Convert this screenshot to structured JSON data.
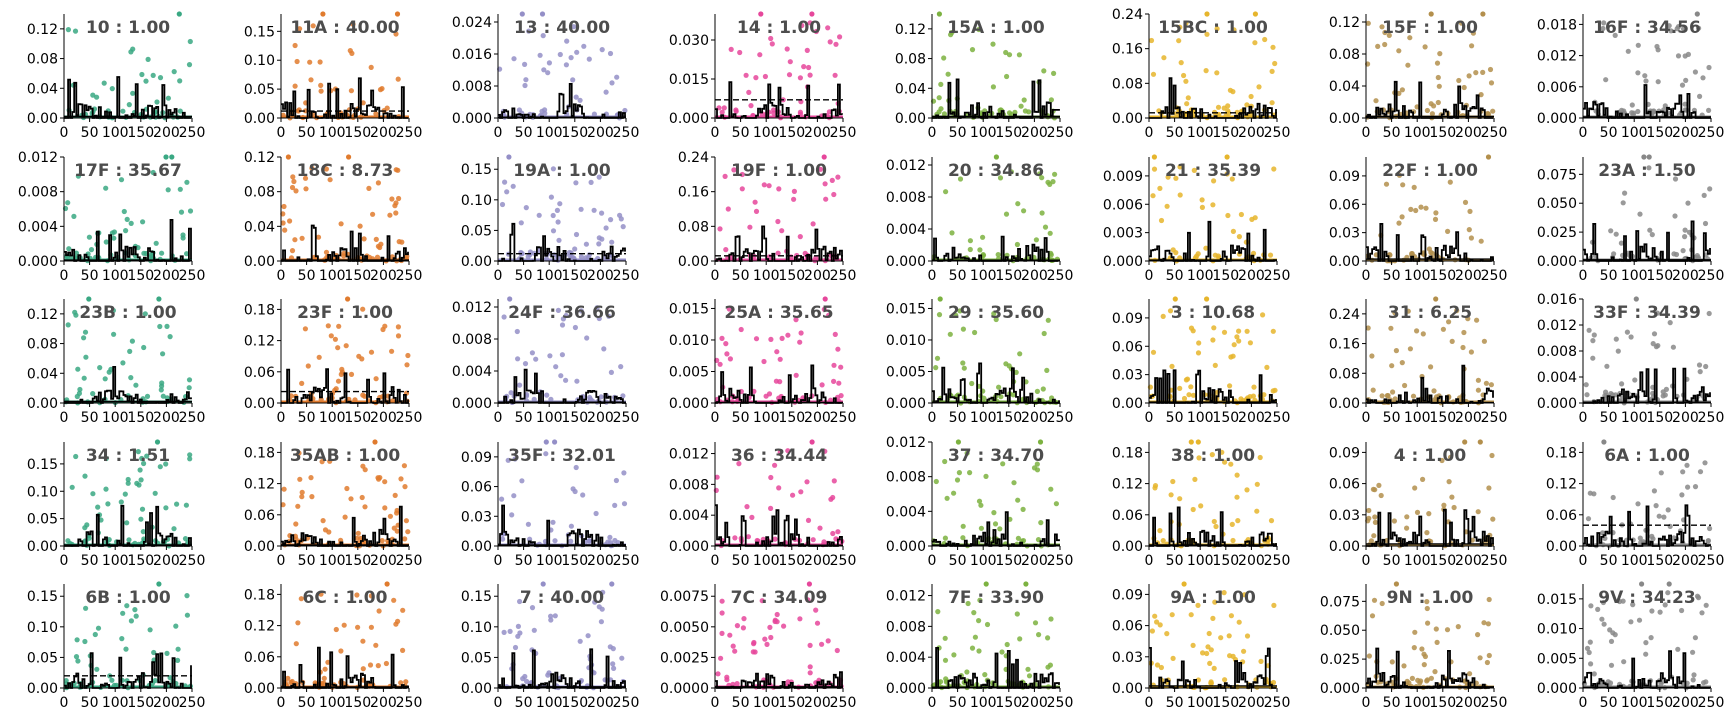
{
  "colors": [
    "#3aa883",
    "#e07b2e",
    "#948fc7",
    "#e6479b",
    "#7cb240",
    "#e6b52c",
    "#b38f4c",
    "#888888"
  ],
  "chart_data": [
    {
      "type": "scatter",
      "title": "10 : 1.00",
      "x_ticks": [
        0,
        50,
        100,
        150,
        200,
        250
      ],
      "xlim": [
        0,
        250
      ],
      "ylim": [
        0,
        0.14
      ],
      "y_ticks": [
        "0.00",
        "0.04",
        "0.08",
        "0.12"
      ],
      "y_tick_values": [
        0,
        0.04,
        0.08,
        0.12
      ],
      "threshold": 0.002,
      "dashed": false
    },
    {
      "type": "scatter",
      "title": "11A : 40.00",
      "x_ticks": [
        0,
        50,
        100,
        150,
        200,
        250
      ],
      "xlim": [
        0,
        250
      ],
      "ylim": [
        0,
        0.18
      ],
      "y_ticks": [
        "0.00",
        "0.05",
        "0.10",
        "0.15"
      ],
      "y_tick_values": [
        0,
        0.05,
        0.1,
        0.15
      ],
      "threshold": 0.012,
      "dashed": true
    },
    {
      "type": "scatter",
      "title": "13 : 40.00",
      "x_ticks": [
        0,
        50,
        100,
        150,
        200,
        250
      ],
      "xlim": [
        0,
        250
      ],
      "ylim": [
        0,
        0.026
      ],
      "y_ticks": [
        "0.000",
        "0.008",
        "0.016",
        "0.024"
      ],
      "y_tick_values": [
        0,
        0.008,
        0.016,
        0.024
      ],
      "threshold": 0.0002,
      "dashed": false
    },
    {
      "type": "scatter",
      "title": "14 : 1.00",
      "x_ticks": [
        0,
        50,
        100,
        150,
        200,
        250
      ],
      "xlim": [
        0,
        250
      ],
      "ylim": [
        0,
        0.04
      ],
      "y_ticks": [
        "0.000",
        "0.015",
        "0.030"
      ],
      "y_tick_values": [
        0,
        0.015,
        0.03
      ],
      "threshold": 0.007,
      "dashed": true
    },
    {
      "type": "scatter",
      "title": "15A : 1.00",
      "x_ticks": [
        0,
        50,
        100,
        150,
        200,
        250
      ],
      "xlim": [
        0,
        250
      ],
      "ylim": [
        0,
        0.14
      ],
      "y_ticks": [
        "0.00",
        "0.04",
        "0.08",
        "0.12"
      ],
      "y_tick_values": [
        0,
        0.04,
        0.08,
        0.12
      ],
      "threshold": 0.002,
      "dashed": false
    },
    {
      "type": "scatter",
      "title": "15BC : 1.00",
      "x_ticks": [
        0,
        50,
        100,
        150,
        200,
        250
      ],
      "xlim": [
        0,
        250
      ],
      "ylim": [
        0,
        0.24
      ],
      "y_ticks": [
        "0.00",
        "0.08",
        "0.16",
        "0.24"
      ],
      "y_tick_values": [
        0,
        0.08,
        0.16,
        0.24
      ],
      "threshold": 0.012,
      "dashed": true
    },
    {
      "type": "scatter",
      "title": "15F : 1.00",
      "x_ticks": [
        0,
        50,
        100,
        150,
        200,
        250
      ],
      "xlim": [
        0,
        250
      ],
      "ylim": [
        0,
        0.13
      ],
      "y_ticks": [
        "0.00",
        "0.04",
        "0.08",
        "0.12"
      ],
      "y_tick_values": [
        0,
        0.04,
        0.08,
        0.12
      ],
      "threshold": 0.002,
      "dashed": false
    },
    {
      "type": "scatter",
      "title": "16F : 34.56",
      "x_ticks": [
        0,
        50,
        100,
        150,
        200,
        250
      ],
      "xlim": [
        0,
        250
      ],
      "ylim": [
        0,
        0.02
      ],
      "y_ticks": [
        "0.000",
        "0.006",
        "0.012",
        "0.018"
      ],
      "y_tick_values": [
        0,
        0.006,
        0.012,
        0.018
      ],
      "threshold": 0.0002,
      "dashed": false
    },
    {
      "type": "scatter",
      "title": "17F : 35.67",
      "x_ticks": [
        0,
        50,
        100,
        150,
        200,
        250
      ],
      "xlim": [
        0,
        250
      ],
      "ylim": [
        0,
        0.012
      ],
      "y_ticks": [
        "0.000",
        "0.004",
        "0.008",
        "0.012"
      ],
      "y_tick_values": [
        0,
        0.004,
        0.008,
        0.012
      ],
      "threshold": 0.0001,
      "dashed": false
    },
    {
      "type": "scatter",
      "title": "18C : 8.73",
      "x_ticks": [
        0,
        50,
        100,
        150,
        200,
        250
      ],
      "xlim": [
        0,
        250
      ],
      "ylim": [
        0,
        0.12
      ],
      "y_ticks": [
        "0.00",
        "0.04",
        "0.08",
        "0.12"
      ],
      "y_tick_values": [
        0,
        0.04,
        0.08,
        0.12
      ],
      "threshold": 0.001,
      "dashed": false
    },
    {
      "type": "scatter",
      "title": "19A : 1.00",
      "x_ticks": [
        0,
        50,
        100,
        150,
        200,
        250
      ],
      "xlim": [
        0,
        250
      ],
      "ylim": [
        0,
        0.17
      ],
      "y_ticks": [
        "0.00",
        "0.05",
        "0.10",
        "0.15"
      ],
      "y_tick_values": [
        0,
        0.05,
        0.1,
        0.15
      ],
      "threshold": 0.012,
      "dashed": true
    },
    {
      "type": "scatter",
      "title": "19F : 1.00",
      "x_ticks": [
        0,
        50,
        100,
        150,
        200,
        250
      ],
      "xlim": [
        0,
        250
      ],
      "ylim": [
        0,
        0.24
      ],
      "y_ticks": [
        "0.00",
        "0.08",
        "0.16",
        "0.24"
      ],
      "y_tick_values": [
        0,
        0.08,
        0.16,
        0.24
      ],
      "threshold": 0.012,
      "dashed": true
    },
    {
      "type": "scatter",
      "title": "20 : 34.86",
      "x_ticks": [
        0,
        50,
        100,
        150,
        200,
        250
      ],
      "xlim": [
        0,
        250
      ],
      "ylim": [
        0,
        0.013
      ],
      "y_ticks": [
        "0.000",
        "0.004",
        "0.008",
        "0.012"
      ],
      "y_tick_values": [
        0,
        0.004,
        0.008,
        0.012
      ],
      "threshold": 0.0001,
      "dashed": false
    },
    {
      "type": "scatter",
      "title": "21 : 35.39",
      "x_ticks": [
        0,
        50,
        100,
        150,
        200,
        250
      ],
      "xlim": [
        0,
        250
      ],
      "ylim": [
        0,
        0.011
      ],
      "y_ticks": [
        "0.000",
        "0.003",
        "0.006",
        "0.009"
      ],
      "y_tick_values": [
        0,
        0.003,
        0.006,
        0.009
      ],
      "threshold": 0.0001,
      "dashed": false
    },
    {
      "type": "scatter",
      "title": "22F : 1.00",
      "x_ticks": [
        0,
        50,
        100,
        150,
        200,
        250
      ],
      "xlim": [
        0,
        250
      ],
      "ylim": [
        0,
        0.11
      ],
      "y_ticks": [
        "0.00",
        "0.03",
        "0.06",
        "0.09"
      ],
      "y_tick_values": [
        0,
        0.03,
        0.06,
        0.09
      ],
      "threshold": 0.002,
      "dashed": false
    },
    {
      "type": "scatter",
      "title": "23A : 1.50",
      "x_ticks": [
        0,
        50,
        100,
        150,
        200,
        250
      ],
      "xlim": [
        0,
        250
      ],
      "ylim": [
        0,
        0.09
      ],
      "y_ticks": [
        "0.000",
        "0.025",
        "0.050",
        "0.075"
      ],
      "y_tick_values": [
        0,
        0.025,
        0.05,
        0.075
      ],
      "threshold": 0.001,
      "dashed": false
    },
    {
      "type": "scatter",
      "title": "23B : 1.00",
      "x_ticks": [
        0,
        50,
        100,
        150,
        200,
        250
      ],
      "xlim": [
        0,
        250
      ],
      "ylim": [
        0,
        0.14
      ],
      "y_ticks": [
        "0.00",
        "0.04",
        "0.08",
        "0.12"
      ],
      "y_tick_values": [
        0,
        0.04,
        0.08,
        0.12
      ],
      "threshold": 0.002,
      "dashed": false
    },
    {
      "type": "scatter",
      "title": "23F : 1.00",
      "x_ticks": [
        0,
        50,
        100,
        150,
        200,
        250
      ],
      "xlim": [
        0,
        250
      ],
      "ylim": [
        0,
        0.2
      ],
      "y_ticks": [
        "0.00",
        "0.06",
        "0.12",
        "0.18"
      ],
      "y_tick_values": [
        0,
        0.06,
        0.12,
        0.18
      ],
      "threshold": 0.022,
      "dashed": true
    },
    {
      "type": "scatter",
      "title": "24F : 36.66",
      "x_ticks": [
        0,
        50,
        100,
        150,
        200,
        250
      ],
      "xlim": [
        0,
        250
      ],
      "ylim": [
        0,
        0.013
      ],
      "y_ticks": [
        "0.000",
        "0.004",
        "0.008",
        "0.012"
      ],
      "y_tick_values": [
        0,
        0.004,
        0.008,
        0.012
      ],
      "threshold": 0.0001,
      "dashed": false
    },
    {
      "type": "scatter",
      "title": "25A : 35.65",
      "x_ticks": [
        0,
        50,
        100,
        150,
        200,
        250
      ],
      "xlim": [
        0,
        250
      ],
      "ylim": [
        0,
        0.0165
      ],
      "y_ticks": [
        "0.000",
        "0.005",
        "0.010",
        "0.015"
      ],
      "y_tick_values": [
        0,
        0.005,
        0.01,
        0.015
      ],
      "threshold": 0.0001,
      "dashed": false
    },
    {
      "type": "scatter",
      "title": "29 : 35.60",
      "x_ticks": [
        0,
        50,
        100,
        150,
        200,
        250
      ],
      "xlim": [
        0,
        250
      ],
      "ylim": [
        0,
        0.0165
      ],
      "y_ticks": [
        "0.000",
        "0.005",
        "0.010",
        "0.015"
      ],
      "y_tick_values": [
        0,
        0.005,
        0.01,
        0.015
      ],
      "threshold": 0.0001,
      "dashed": false
    },
    {
      "type": "scatter",
      "title": "3 : 10.68",
      "x_ticks": [
        0,
        50,
        100,
        150,
        200,
        250
      ],
      "xlim": [
        0,
        250
      ],
      "ylim": [
        0,
        0.11
      ],
      "y_ticks": [
        "0.00",
        "0.03",
        "0.06",
        "0.09"
      ],
      "y_tick_values": [
        0,
        0.03,
        0.06,
        0.09
      ],
      "threshold": 0.001,
      "dashed": false
    },
    {
      "type": "scatter",
      "title": "31 : 6.25",
      "x_ticks": [
        0,
        50,
        100,
        150,
        200,
        250
      ],
      "xlim": [
        0,
        250
      ],
      "ylim": [
        0,
        0.28
      ],
      "y_ticks": [
        "0.00",
        "0.08",
        "0.16",
        "0.24"
      ],
      "y_tick_values": [
        0,
        0.08,
        0.16,
        0.24
      ],
      "threshold": 0.001,
      "dashed": false
    },
    {
      "type": "scatter",
      "title": "33F : 34.39",
      "x_ticks": [
        0,
        50,
        100,
        150,
        200,
        250
      ],
      "xlim": [
        0,
        250
      ],
      "ylim": [
        0,
        0.016
      ],
      "y_ticks": [
        "0.000",
        "0.004",
        "0.008",
        "0.012",
        "0.016"
      ],
      "y_tick_values": [
        0,
        0.004,
        0.008,
        0.012,
        0.016
      ],
      "threshold": 0.0001,
      "dashed": false
    },
    {
      "type": "scatter",
      "title": "34 : 1.51",
      "x_ticks": [
        0,
        50,
        100,
        150,
        200,
        250
      ],
      "xlim": [
        0,
        250
      ],
      "ylim": [
        0,
        0.19
      ],
      "y_ticks": [
        "0.00",
        "0.05",
        "0.10",
        "0.15"
      ],
      "y_tick_values": [
        0,
        0.05,
        0.1,
        0.15
      ],
      "threshold": 0.002,
      "dashed": false
    },
    {
      "type": "scatter",
      "title": "35AB : 1.00",
      "x_ticks": [
        0,
        50,
        100,
        150,
        200,
        250
      ],
      "xlim": [
        0,
        250
      ],
      "ylim": [
        0,
        0.2
      ],
      "y_ticks": [
        "0.00",
        "0.06",
        "0.12",
        "0.18"
      ],
      "y_tick_values": [
        0,
        0.06,
        0.12,
        0.18
      ],
      "threshold": 0.002,
      "dashed": false
    },
    {
      "type": "scatter",
      "title": "35F : 32.01",
      "x_ticks": [
        0,
        50,
        100,
        150,
        200,
        250
      ],
      "xlim": [
        0,
        250
      ],
      "ylim": [
        0,
        0.105
      ],
      "y_ticks": [
        "0.00",
        "0.03",
        "0.06",
        "0.09"
      ],
      "y_tick_values": [
        0,
        0.03,
        0.06,
        0.09
      ],
      "threshold": 0.001,
      "dashed": false
    },
    {
      "type": "scatter",
      "title": "36 : 34.44",
      "x_ticks": [
        0,
        50,
        100,
        150,
        200,
        250
      ],
      "xlim": [
        0,
        250
      ],
      "ylim": [
        0,
        0.0135
      ],
      "y_ticks": [
        "0.000",
        "0.004",
        "0.008",
        "0.012"
      ],
      "y_tick_values": [
        0,
        0.004,
        0.008,
        0.012
      ],
      "threshold": 0.0001,
      "dashed": false
    },
    {
      "type": "scatter",
      "title": "37 : 34.70",
      "x_ticks": [
        0,
        50,
        100,
        150,
        200,
        250
      ],
      "xlim": [
        0,
        250
      ],
      "ylim": [
        0,
        0.012
      ],
      "y_ticks": [
        "0.000",
        "0.004",
        "0.008",
        "0.012"
      ],
      "y_tick_values": [
        0,
        0.004,
        0.008,
        0.012
      ],
      "threshold": 0.0001,
      "dashed": false
    },
    {
      "type": "scatter",
      "title": "38 : 1.00",
      "x_ticks": [
        0,
        50,
        100,
        150,
        200,
        250
      ],
      "xlim": [
        0,
        250
      ],
      "ylim": [
        0,
        0.2
      ],
      "y_ticks": [
        "0.00",
        "0.06",
        "0.12",
        "0.18"
      ],
      "y_tick_values": [
        0,
        0.06,
        0.12,
        0.18
      ],
      "threshold": 0.002,
      "dashed": false
    },
    {
      "type": "scatter",
      "title": "4 : 1.00",
      "x_ticks": [
        0,
        50,
        100,
        150,
        200,
        250
      ],
      "xlim": [
        0,
        250
      ],
      "ylim": [
        0,
        0.1
      ],
      "y_ticks": [
        "0.00",
        "0.03",
        "0.06",
        "0.09"
      ],
      "y_tick_values": [
        0,
        0.03,
        0.06,
        0.09
      ],
      "threshold": 0.002,
      "dashed": false
    },
    {
      "type": "scatter",
      "title": "6A : 1.00",
      "x_ticks": [
        0,
        50,
        100,
        150,
        200,
        250
      ],
      "xlim": [
        0,
        250
      ],
      "ylim": [
        0,
        0.2
      ],
      "y_ticks": [
        "0.00",
        "0.06",
        "0.12",
        "0.18"
      ],
      "y_tick_values": [
        0,
        0.06,
        0.12,
        0.18
      ],
      "threshold": 0.04,
      "dashed": true
    },
    {
      "type": "scatter",
      "title": "6B : 1.00",
      "x_ticks": [
        0,
        50,
        100,
        150,
        200,
        250
      ],
      "xlim": [
        0,
        250
      ],
      "ylim": [
        0,
        0.17
      ],
      "y_ticks": [
        "0.00",
        "0.05",
        "0.10",
        "0.15"
      ],
      "y_tick_values": [
        0,
        0.05,
        0.1,
        0.15
      ],
      "threshold": 0.02,
      "dashed": true
    },
    {
      "type": "scatter",
      "title": "6C : 1.00",
      "x_ticks": [
        0,
        50,
        100,
        150,
        200,
        250
      ],
      "xlim": [
        0,
        250
      ],
      "ylim": [
        0,
        0.2
      ],
      "y_ticks": [
        "0.00",
        "0.06",
        "0.12",
        "0.18"
      ],
      "y_tick_values": [
        0,
        0.06,
        0.12,
        0.18
      ],
      "threshold": 0.002,
      "dashed": false
    },
    {
      "type": "scatter",
      "title": "7 : 40.00",
      "x_ticks": [
        0,
        50,
        100,
        150,
        200,
        250
      ],
      "xlim": [
        0,
        250
      ],
      "ylim": [
        0,
        0.17
      ],
      "y_ticks": [
        "0.00",
        "0.05",
        "0.10",
        "0.15"
      ],
      "y_tick_values": [
        0,
        0.05,
        0.1,
        0.15
      ],
      "threshold": 0.002,
      "dashed": false
    },
    {
      "type": "scatter",
      "title": "7C : 34.09",
      "x_ticks": [
        0,
        50,
        100,
        150,
        200,
        250
      ],
      "xlim": [
        0,
        250
      ],
      "ylim": [
        0,
        0.0085
      ],
      "y_ticks": [
        "0.0000",
        "0.0025",
        "0.0050",
        "0.0075"
      ],
      "y_tick_values": [
        0,
        0.0025,
        0.005,
        0.0075
      ],
      "threshold": 0.0001,
      "dashed": false
    },
    {
      "type": "scatter",
      "title": "7F : 33.90",
      "x_ticks": [
        0,
        50,
        100,
        150,
        200,
        250
      ],
      "xlim": [
        0,
        250
      ],
      "ylim": [
        0,
        0.0135
      ],
      "y_ticks": [
        "0.000",
        "0.004",
        "0.008",
        "0.012"
      ],
      "y_tick_values": [
        0,
        0.004,
        0.008,
        0.012
      ],
      "threshold": 0.0001,
      "dashed": false
    },
    {
      "type": "scatter",
      "title": "9A : 1.00",
      "x_ticks": [
        0,
        50,
        100,
        150,
        200,
        250
      ],
      "xlim": [
        0,
        250
      ],
      "ylim": [
        0,
        0.1
      ],
      "y_ticks": [
        "0.00",
        "0.03",
        "0.06",
        "0.09"
      ],
      "y_tick_values": [
        0,
        0.03,
        0.06,
        0.09
      ],
      "threshold": 0.002,
      "dashed": false
    },
    {
      "type": "scatter",
      "title": "9N : 1.00",
      "x_ticks": [
        0,
        50,
        100,
        150,
        200,
        250
      ],
      "xlim": [
        0,
        250
      ],
      "ylim": [
        0,
        0.09
      ],
      "y_ticks": [
        "0.000",
        "0.025",
        "0.050",
        "0.075"
      ],
      "y_tick_values": [
        0,
        0.025,
        0.05,
        0.075
      ],
      "threshold": 0.001,
      "dashed": false
    },
    {
      "type": "scatter",
      "title": "9V : 34.23",
      "x_ticks": [
        0,
        50,
        100,
        150,
        200,
        250
      ],
      "xlim": [
        0,
        250
      ],
      "ylim": [
        0,
        0.0175
      ],
      "y_ticks": [
        "0.000",
        "0.005",
        "0.010",
        "0.015"
      ],
      "y_tick_values": [
        0,
        0.005,
        0.01,
        0.015
      ],
      "threshold": 0.0001,
      "dashed": false
    }
  ]
}
